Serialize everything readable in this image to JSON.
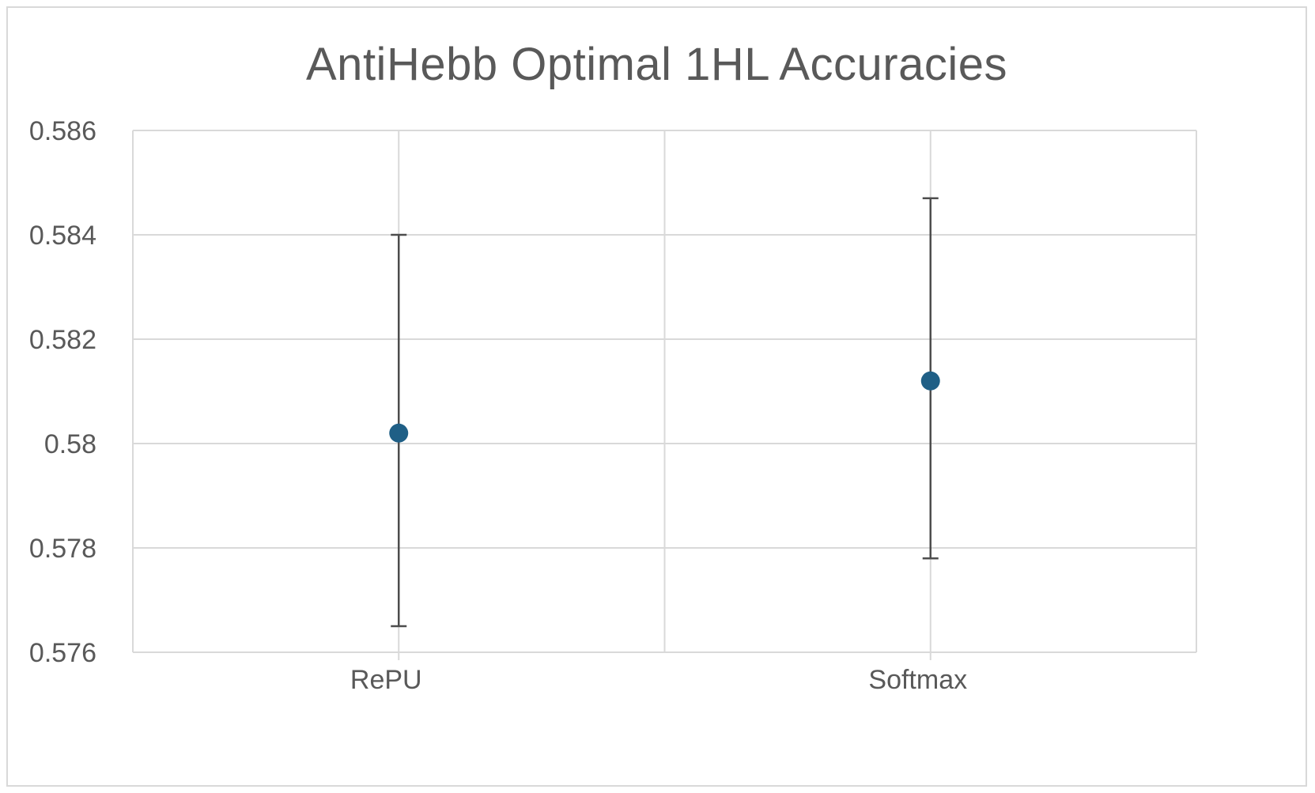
{
  "chart_data": {
    "type": "scatter",
    "title": "AntiHebb Optimal 1HL Accuracies",
    "xlabel": "",
    "ylabel": "",
    "categories": [
      "RePU",
      "Softmax"
    ],
    "values": [
      0.5802,
      0.5812
    ],
    "error_bars": [
      {
        "low": 0.5765,
        "high": 0.584
      },
      {
        "low": 0.5778,
        "high": 0.5847
      }
    ],
    "ylim": [
      0.576,
      0.586
    ],
    "yticks": [
      "0.586",
      "0.584",
      "0.582",
      "0.58",
      "0.578",
      "0.576"
    ],
    "grid": true,
    "legend": "none",
    "colors": {
      "marker": "#1f5f86",
      "error_bar": "#4d4d4d",
      "grid": "#d9d9d9",
      "text": "#595959"
    }
  }
}
